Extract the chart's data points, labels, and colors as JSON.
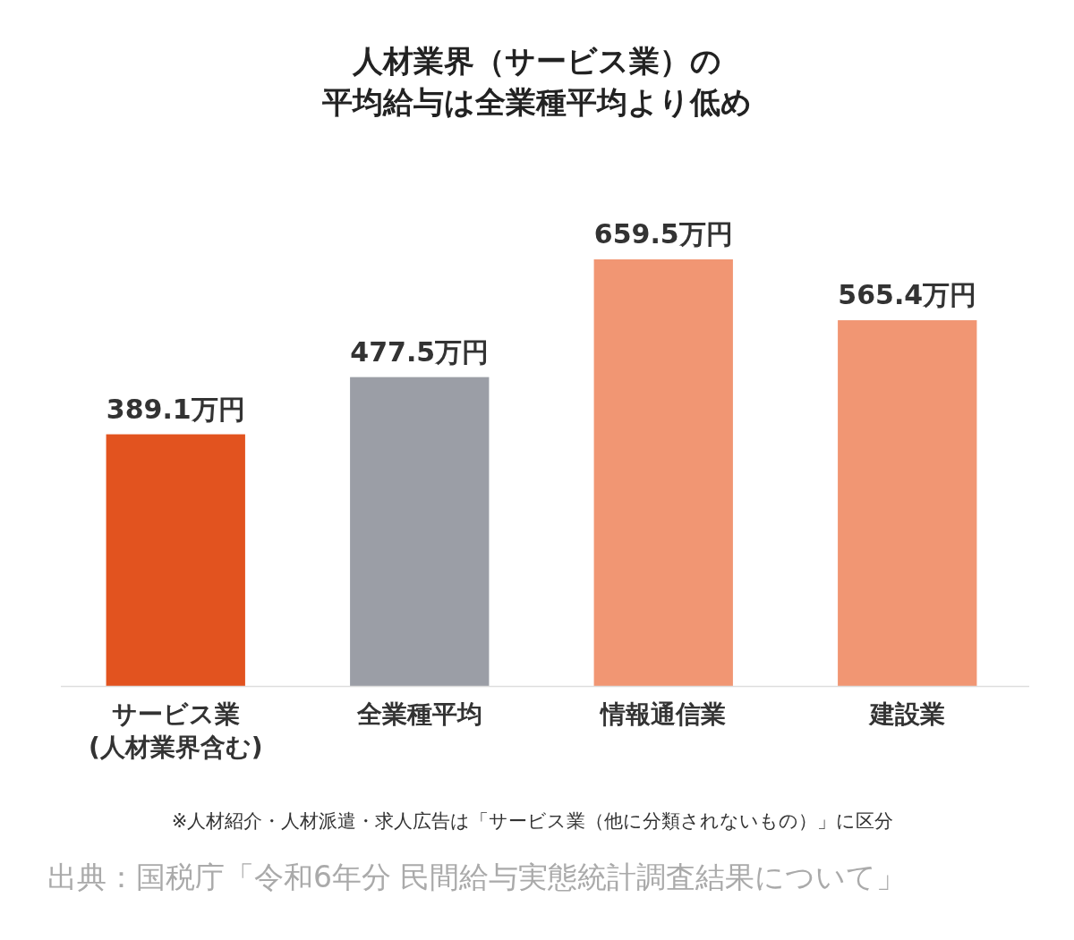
{
  "chart_data": {
    "type": "bar",
    "title": "人材業界（サービス業）の",
    "subtitle": "平均給与は全業種平均より低め",
    "categories": [
      "サービス業\n(人材業界含む)",
      "全業種平均",
      "情報通信業",
      "建設業"
    ],
    "values": [
      389.1,
      477.5,
      659.5,
      565.4
    ],
    "colors": [
      "#e2531f",
      "#9b9ea6",
      "#f19673",
      "#f19673"
    ],
    "value_labels": [
      "389.1万円",
      "477.5万円",
      "659.5万円",
      "565.4万円"
    ],
    "annotations": [
      "※人材紹介・人材派遣・求人広告は「サービス業（他に分類されないもの）」に区分",
      "出典：国税庁「令和6年分 民間給与実態統計調査結果について」"
    ]
  }
}
